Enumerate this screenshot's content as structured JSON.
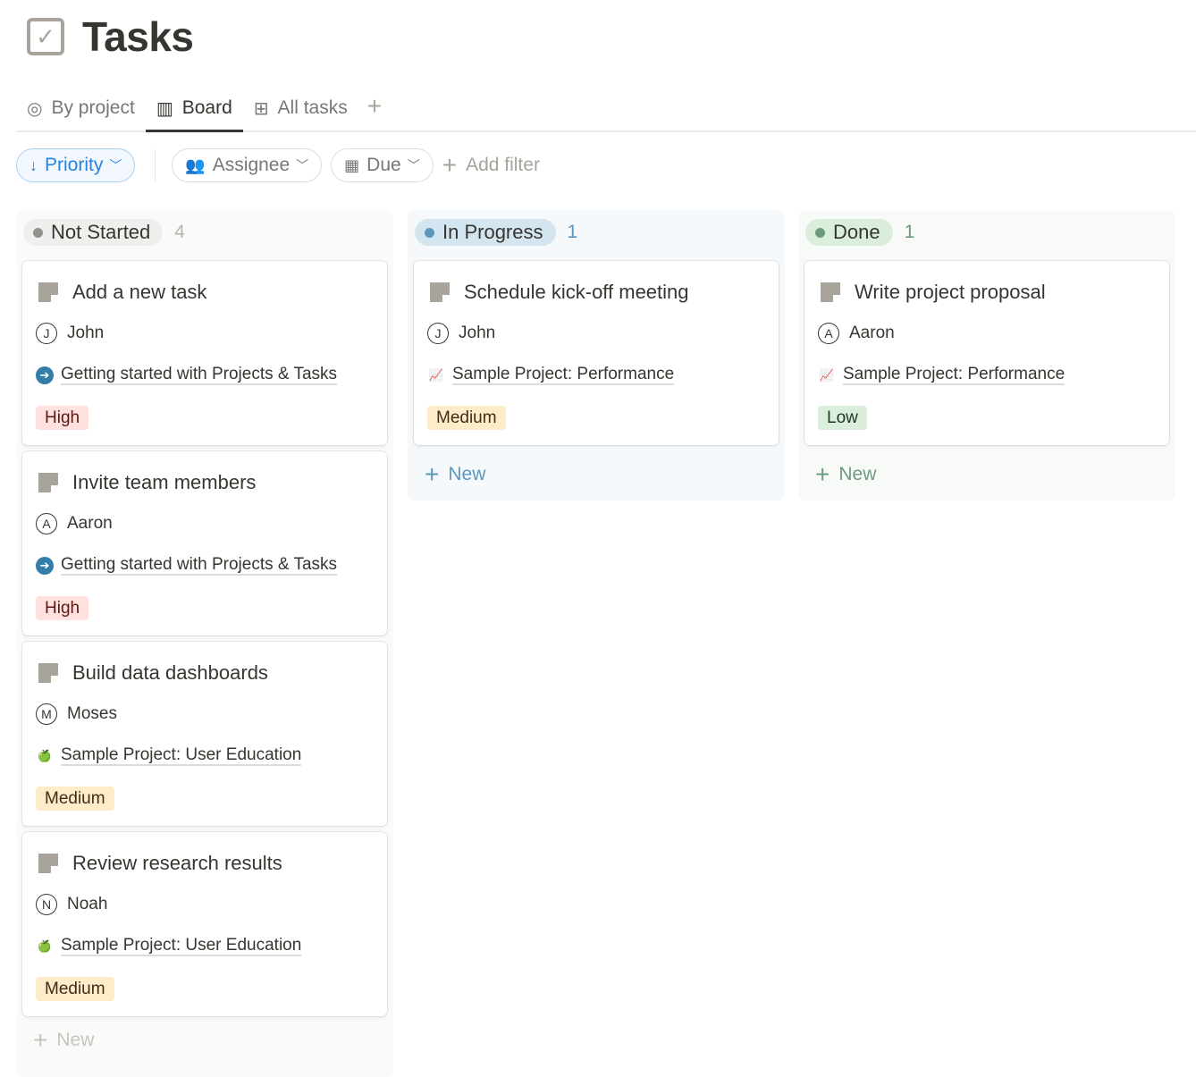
{
  "page": {
    "title": "Tasks",
    "icon": "checkbox-icon"
  },
  "tabs": [
    {
      "label": "By project",
      "icon": "target-icon",
      "active": false
    },
    {
      "label": "Board",
      "icon": "board-columns-icon",
      "active": true
    },
    {
      "label": "All tasks",
      "icon": "table-icon",
      "active": false
    }
  ],
  "filters": {
    "sort": {
      "label": "Priority",
      "icon": "arrow-down-icon"
    },
    "assignee": {
      "label": "Assignee",
      "icon": "people-icon"
    },
    "due": {
      "label": "Due",
      "icon": "calendar-icon"
    },
    "add_filter": "Add filter"
  },
  "columns": [
    {
      "status": "Not Started",
      "count": "4",
      "dot_color": "#91918e",
      "pill_bg": "#efefee",
      "col_bg": "#fafaf9",
      "count_color": "#b4b4b0",
      "new_label": "New",
      "new_color": "#c4c4c0",
      "cards": [
        {
          "title": "Add a new task",
          "assignee": "John",
          "initial": "J",
          "project": "Getting started with Projects & Tasks",
          "project_icon": "arrow-right-circle-icon",
          "priority": "High"
        },
        {
          "title": "Invite team members",
          "assignee": "Aaron",
          "initial": "A",
          "project": "Getting started with Projects & Tasks",
          "project_icon": "arrow-right-circle-icon",
          "priority": "High"
        },
        {
          "title": "Build data dashboards",
          "assignee": "Moses",
          "initial": "M",
          "project": "Sample Project: User Education",
          "project_icon": "green-apple-icon",
          "priority": "Medium"
        },
        {
          "title": "Review research results",
          "assignee": "Noah",
          "initial": "N",
          "project": "Sample Project: User Education",
          "project_icon": "green-apple-icon",
          "priority": "Medium"
        }
      ]
    },
    {
      "status": "In Progress",
      "count": "1",
      "dot_color": "#5b97bd",
      "pill_bg": "#d3e5ef",
      "col_bg": "#f5f9fc",
      "count_color": "#5b97bd",
      "new_label": "New",
      "new_color": "#5b97bd",
      "cards": [
        {
          "title": "Schedule kick-off meeting",
          "assignee": "John",
          "initial": "J",
          "project": "Sample Project: Performance",
          "project_icon": "chart-increasing-icon",
          "priority": "Medium"
        }
      ]
    },
    {
      "status": "Done",
      "count": "1",
      "dot_color": "#6c9b7d",
      "pill_bg": "#dbeddb",
      "col_bg": "#f7faf7",
      "count_color": "#6c9b7d",
      "new_label": "New",
      "new_color": "#6c9b7d",
      "cards": [
        {
          "title": "Write project proposal",
          "assignee": "Aaron",
          "initial": "A",
          "project": "Sample Project: Performance",
          "project_icon": "chart-increasing-icon",
          "priority": "Low"
        }
      ]
    }
  ],
  "priority_colors": {
    "High": {
      "bg": "#ffe2dd",
      "fg": "#5d1715"
    },
    "Medium": {
      "bg": "#fdecc8",
      "fg": "#402c1b"
    },
    "Low": {
      "bg": "#dbeddb",
      "fg": "#1c3829"
    }
  }
}
